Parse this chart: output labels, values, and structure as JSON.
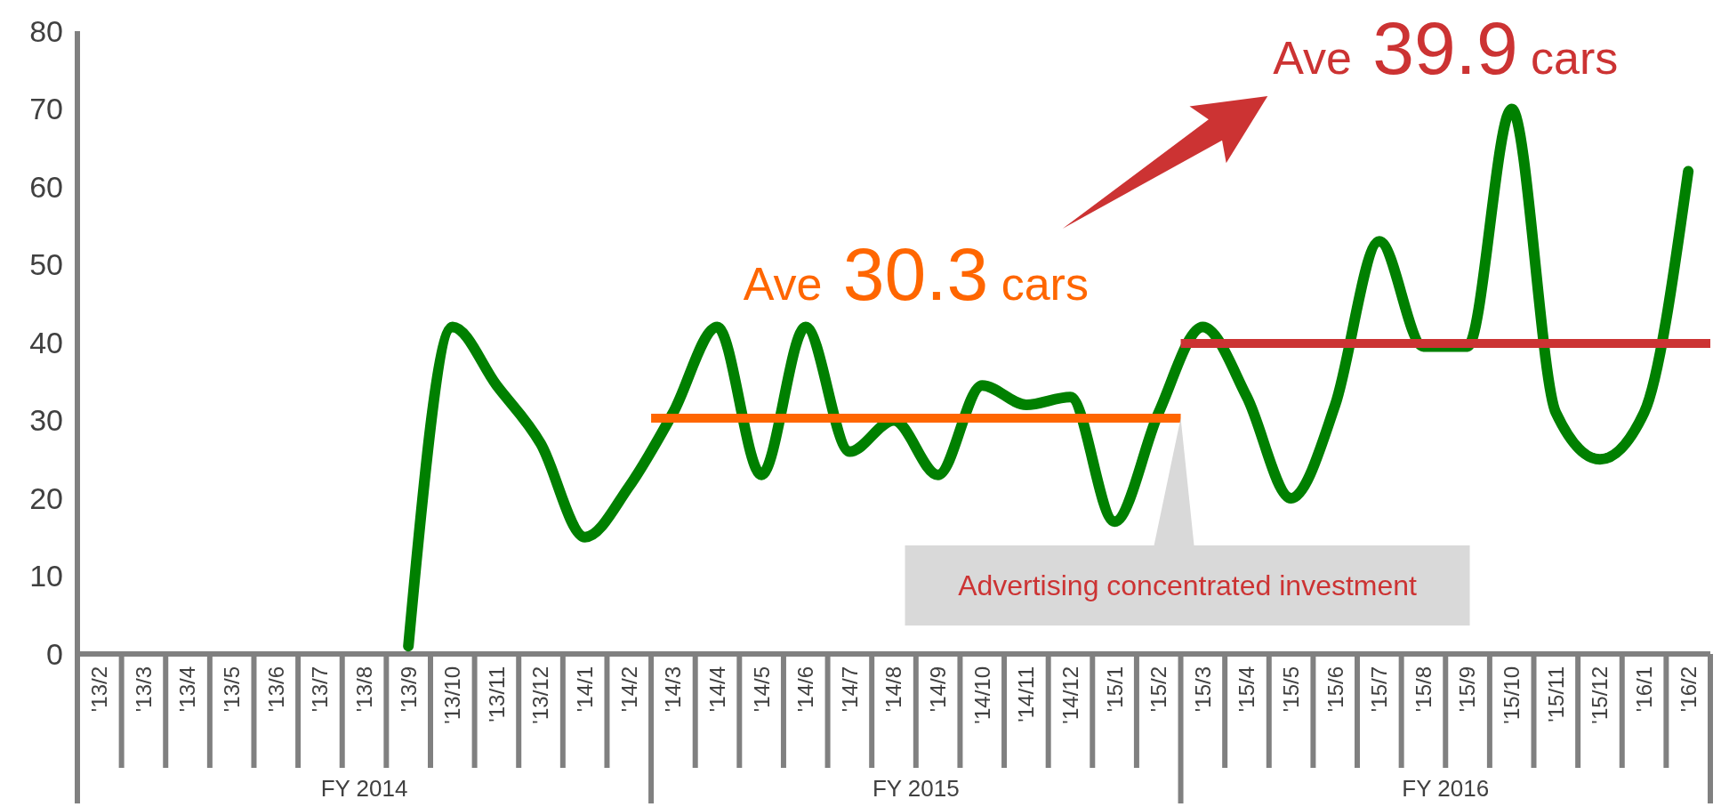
{
  "chart_data": {
    "type": "line",
    "categories": [
      "'13/2",
      "'13/3",
      "'13/4",
      "'13/5",
      "'13/6",
      "'13/7",
      "'13/8",
      "'13/9",
      "'13/10",
      "'13/11",
      "'13/12",
      "'14/1",
      "'14/2",
      "'14/3",
      "'14/4",
      "'14/5",
      "'14/6",
      "'14/7",
      "'14/8",
      "'14/9",
      "'14/10",
      "'14/11",
      "'14/12",
      "'15/1",
      "'15/2",
      "'15/3",
      "'15/4",
      "'15/5",
      "'15/6",
      "'15/7",
      "'15/8",
      "'15/9",
      "'15/10",
      "'15/11",
      "'15/12",
      "'16/1",
      "'16/2"
    ],
    "series": [
      {
        "color": "#008000",
        "values": [
          null,
          null,
          null,
          null,
          null,
          null,
          null,
          1,
          42,
          34.5,
          27,
          15,
          21.5,
          31,
          42,
          23,
          42,
          26,
          30,
          23,
          34.5,
          32,
          33,
          17,
          31,
          42,
          33,
          20,
          32,
          53,
          39.5,
          39.5,
          70,
          31,
          25,
          31,
          62
        ]
      }
    ],
    "ylim": [
      0,
      80
    ],
    "yticks": [
      0,
      10,
      20,
      30,
      40,
      50,
      60,
      70,
      80
    ],
    "ref_lines": [
      {
        "axis": "y",
        "value": 30.3,
        "label": "Ave 30.3 cars",
        "color": "#ff6600"
      },
      {
        "axis": "y",
        "value": 39.9,
        "label": "Ave 39.9 cars",
        "color": "#cc3333"
      }
    ],
    "annotations": [
      "FY 2014",
      "FY 2015",
      "FY 2016",
      "Advertising concentrated investment"
    ],
    "grid": false,
    "marker": "none",
    "line_style": "solid"
  }
}
